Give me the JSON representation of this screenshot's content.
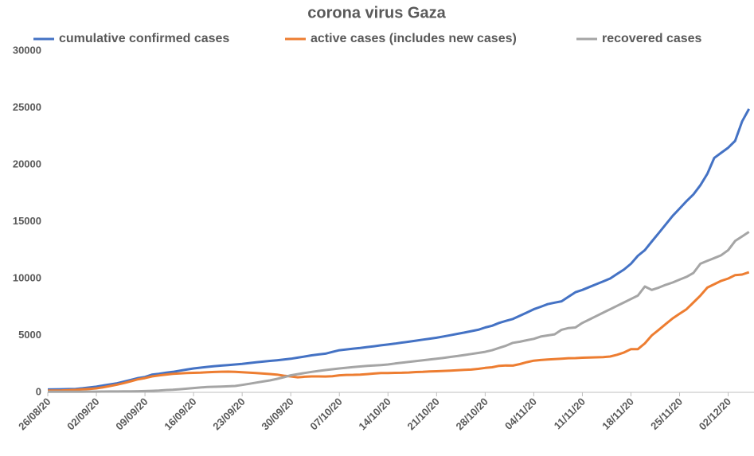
{
  "chart_data": {
    "type": "line",
    "title": "corona virus Gaza",
    "categories": [
      "26/08/20",
      null,
      null,
      null,
      null,
      null,
      null,
      "02/09/20",
      null,
      null,
      null,
      null,
      null,
      null,
      "09/09/20",
      null,
      null,
      null,
      null,
      null,
      null,
      "16/09/20",
      null,
      null,
      null,
      null,
      null,
      null,
      "23/09/20",
      null,
      null,
      null,
      null,
      null,
      null,
      "30/09/20",
      null,
      null,
      null,
      null,
      null,
      null,
      "07/10/20",
      null,
      null,
      null,
      null,
      null,
      null,
      "14/10/20",
      null,
      null,
      null,
      null,
      null,
      null,
      "21/10/20",
      null,
      null,
      null,
      null,
      null,
      null,
      "28/10/20",
      null,
      null,
      null,
      null,
      null,
      null,
      "04/11/20",
      null,
      null,
      null,
      null,
      null,
      null,
      "11/11/20",
      null,
      null,
      null,
      null,
      null,
      null,
      "18/11/20",
      null,
      null,
      null,
      null,
      null,
      null,
      "25/11/20",
      null,
      null,
      null,
      null,
      null,
      null,
      "02/12/20",
      null,
      null,
      null
    ],
    "series": [
      {
        "name": "cumulative confirmed cases",
        "color": "#4472c4",
        "values": [
          250,
          260,
          270,
          285,
          300,
          360,
          430,
          500,
          600,
          700,
          800,
          950,
          1100,
          1250,
          1350,
          1550,
          1630,
          1720,
          1800,
          1900,
          2000,
          2100,
          2170,
          2240,
          2300,
          2350,
          2400,
          2450,
          2500,
          2570,
          2640,
          2700,
          2760,
          2820,
          2880,
          2950,
          3050,
          3150,
          3250,
          3330,
          3400,
          3550,
          3700,
          3770,
          3840,
          3900,
          3980,
          4050,
          4130,
          4200,
          4280,
          4370,
          4450,
          4540,
          4630,
          4710,
          4800,
          4910,
          5020,
          5140,
          5250,
          5380,
          5500,
          5700,
          5850,
          6100,
          6280,
          6450,
          6730,
          7010,
          7300,
          7520,
          7750,
          7880,
          8000,
          8400,
          8800,
          9000,
          9250,
          9500,
          9750,
          10000,
          10400,
          10800,
          11300,
          12000,
          12500,
          13250,
          14000,
          14750,
          15500,
          16150,
          16800,
          17400,
          18200,
          19200,
          20600,
          21050,
          21500,
          22100,
          23800,
          24900
        ]
      },
      {
        "name": "active cases (includes new cases)",
        "color": "#ed7d31",
        "values": [
          150,
          160,
          170,
          190,
          220,
          260,
          300,
          350,
          450,
          560,
          680,
          820,
          980,
          1150,
          1250,
          1400,
          1480,
          1550,
          1620,
          1660,
          1690,
          1710,
          1730,
          1760,
          1790,
          1810,
          1820,
          1800,
          1760,
          1730,
          1700,
          1650,
          1610,
          1560,
          1460,
          1400,
          1320,
          1370,
          1400,
          1400,
          1390,
          1420,
          1500,
          1530,
          1540,
          1560,
          1600,
          1650,
          1690,
          1700,
          1710,
          1720,
          1740,
          1780,
          1800,
          1830,
          1850,
          1880,
          1910,
          1940,
          1970,
          2000,
          2060,
          2150,
          2200,
          2330,
          2360,
          2350,
          2480,
          2650,
          2780,
          2840,
          2880,
          2920,
          2960,
          3000,
          3010,
          3040,
          3060,
          3080,
          3100,
          3150,
          3300,
          3500,
          3800,
          3800,
          4300,
          5000,
          5500,
          6000,
          6500,
          6900,
          7300,
          7900,
          8500,
          9200,
          9500,
          9800,
          10000,
          10300,
          10350,
          10550
        ]
      },
      {
        "name": "recovered cases",
        "color": "#a5a5a5",
        "values": [
          50,
          50,
          50,
          50,
          50,
          55,
          60,
          65,
          70,
          75,
          80,
          85,
          90,
          100,
          110,
          130,
          160,
          200,
          230,
          270,
          320,
          380,
          430,
          470,
          490,
          510,
          530,
          560,
          650,
          750,
          850,
          950,
          1050,
          1180,
          1320,
          1500,
          1600,
          1700,
          1800,
          1880,
          1960,
          2030,
          2100,
          2160,
          2220,
          2270,
          2320,
          2360,
          2400,
          2450,
          2530,
          2600,
          2670,
          2740,
          2810,
          2880,
          2950,
          3030,
          3110,
          3190,
          3280,
          3370,
          3460,
          3560,
          3700,
          3900,
          4100,
          4350,
          4450,
          4580,
          4700,
          4900,
          5000,
          5100,
          5500,
          5650,
          5700,
          6100,
          6400,
          6700,
          7000,
          7300,
          7600,
          7900,
          8200,
          8500,
          9300,
          9000,
          9200,
          9450,
          9650,
          9900,
          10150,
          10500,
          11300,
          11550,
          11800,
          12050,
          12500,
          13300,
          13700,
          14100
        ]
      }
    ],
    "ylim": [
      0,
      30000
    ],
    "yticks": [
      0,
      5000,
      10000,
      15000,
      20000,
      25000,
      30000
    ],
    "grid": false,
    "legend": "top"
  }
}
